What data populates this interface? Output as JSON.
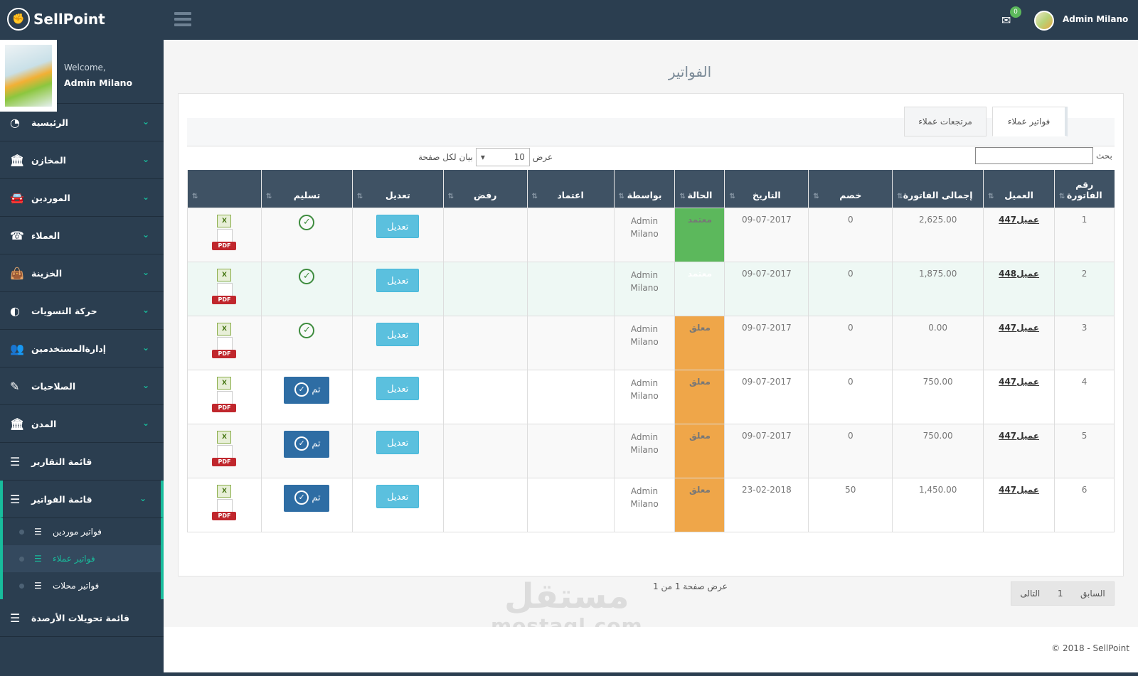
{
  "app": {
    "name": "SellPoint"
  },
  "header": {
    "mail_count": "0",
    "user_name": "Admin Milano"
  },
  "sidebar": {
    "welcome": "Welcome,",
    "user_name": "Admin Milano",
    "items": [
      {
        "label": "الرئيسية",
        "icon": "dashboard-icon"
      },
      {
        "label": "المخازن",
        "icon": "bank-icon"
      },
      {
        "label": "الموردين",
        "icon": "car-icon"
      },
      {
        "label": "العملاء",
        "icon": "phone-icon"
      },
      {
        "label": "الخزينة",
        "icon": "bag-icon"
      },
      {
        "label": "حركة التسويات",
        "icon": "adjust-icon"
      },
      {
        "label": "إدارةالمستخدمين",
        "icon": "users-icon"
      },
      {
        "label": "الصلاحيات",
        "icon": "pencil-icon"
      },
      {
        "label": "المدن",
        "icon": "bank-icon"
      },
      {
        "label": "قائمة التقارير",
        "icon": "list-icon"
      },
      {
        "label": "قائمة الفواتير",
        "icon": "list-icon"
      }
    ],
    "sub_items": [
      {
        "label": "فواتير موردين"
      },
      {
        "label": "فواتير عملاء"
      },
      {
        "label": "فواتير محلات"
      }
    ],
    "last_item": {
      "label": "قائمة تحويلات الأرصدة"
    }
  },
  "page": {
    "title": "الفواتير",
    "tabs": [
      {
        "label": "فواتير عملاء"
      },
      {
        "label": "مرتجعات عملاء"
      }
    ],
    "length_label_pre": "عرض",
    "length_value": "10",
    "length_label_post": "بيان لكل صفحة",
    "search_label": "بحث",
    "search_value": ""
  },
  "table": {
    "columns": [
      "رقم الفاتورة",
      "العميل",
      "إجمالى الفاتورة",
      "خصم",
      "التاريخ",
      "الحالة",
      "بواسطة",
      "اعتماد",
      "رفض",
      "تعديل",
      "تسليم",
      ""
    ],
    "rows": [
      {
        "no": "1",
        "client": "عميل447",
        "total": "2,625.00",
        "discount": "0",
        "date": "09-07-2017",
        "status": "معتمد",
        "by1": "Admin",
        "by2": "Milano",
        "edit": "تعديل",
        "delivery": "check"
      },
      {
        "no": "2",
        "client": "عميل448",
        "total": "1,875.00",
        "discount": "0",
        "date": "09-07-2017",
        "status": "معتمد",
        "by1": "Admin",
        "by2": "Milano",
        "edit": "تعديل",
        "delivery": "check"
      },
      {
        "no": "3",
        "client": "عميل447",
        "total": "0.00",
        "discount": "0",
        "date": "09-07-2017",
        "status": "معلق",
        "by1": "Admin",
        "by2": "Milano",
        "edit": "تعديل",
        "delivery": "check"
      },
      {
        "no": "4",
        "client": "عميل447",
        "total": "750.00",
        "discount": "0",
        "date": "09-07-2017",
        "status": "معلق",
        "by1": "Admin",
        "by2": "Milano",
        "edit": "تعديل",
        "delivery": "تم"
      },
      {
        "no": "5",
        "client": "عميل447",
        "total": "750.00",
        "discount": "0",
        "date": "09-07-2017",
        "status": "معلق",
        "by1": "Admin",
        "by2": "Milano",
        "edit": "تعديل",
        "delivery": "تم"
      },
      {
        "no": "6",
        "client": "عميل447",
        "total": "1,450.00",
        "discount": "50",
        "date": "23-02-2018",
        "status": "معلق",
        "by1": "Admin",
        "by2": "Milano",
        "edit": "تعديل",
        "delivery": "تم"
      }
    ],
    "status_colors": {
      "approved": "#5cb85c",
      "pending": "#efa649"
    },
    "file_labels": {
      "excel": "X",
      "pdf": "PDF"
    }
  },
  "pagination": {
    "info": "عرض صفحة 1 من 1",
    "prev": "السابق",
    "page": "1",
    "next": "التالى"
  },
  "footer": {
    "copyright": "© 2018 - SellPoint"
  },
  "watermark": {
    "ar": "مستقل",
    "en": "mostaql.com"
  },
  "colors": {
    "nav": "#2b3e50",
    "accent": "#18bc9c",
    "header_row": "#3f5264"
  }
}
